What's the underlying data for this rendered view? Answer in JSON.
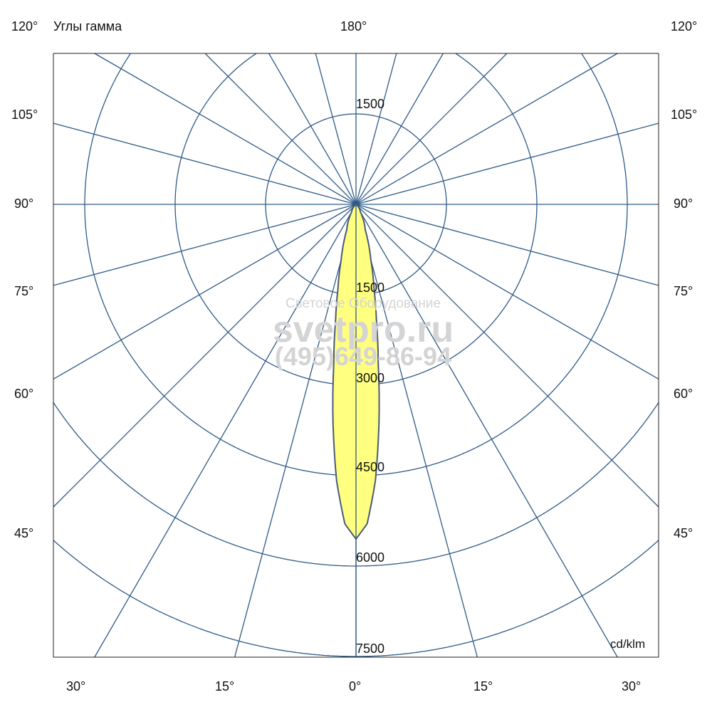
{
  "chart_data": {
    "type": "polar",
    "title": "Углы гамма",
    "unit": "cd/klm",
    "radial_ticks": [
      1500,
      3000,
      4500,
      6000,
      7500
    ],
    "rmax": 7500,
    "angle_step_deg": 15,
    "angle_labels": {
      "top_left": "120°",
      "top_center": "180°",
      "top_right": "120°",
      "left": [
        "105°",
        "90°",
        "75°",
        "60°",
        "45°"
      ],
      "right": [
        "105°",
        "90°",
        "75°",
        "60°",
        "45°"
      ],
      "bottom": [
        "30°",
        "15°",
        "0°",
        "15°",
        "30°"
      ]
    },
    "ring_labels": [
      "1500",
      "1500",
      "3000",
      "4500",
      "6000",
      "7500"
    ],
    "series": [
      {
        "gamma_deg": [
          0,
          2,
          4,
          6,
          8,
          10,
          12,
          15,
          20,
          30,
          45,
          60,
          90
        ],
        "intensity": [
          5550,
          5300,
          4600,
          3650,
          2650,
          1950,
          1450,
          950,
          450,
          150,
          40,
          10,
          0
        ]
      }
    ],
    "grid": true,
    "colors": {
      "grid": "#2e5a87",
      "fill": "#ffff80",
      "outline": "#4a5a78"
    }
  },
  "watermark": {
    "line1": "Световое Оборудование",
    "line2": "svetpro.ru",
    "line3": "(495)649-86-94"
  }
}
